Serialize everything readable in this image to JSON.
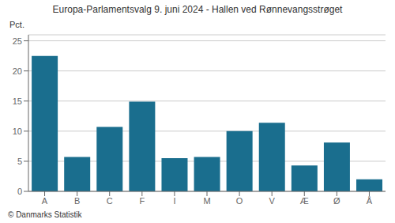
{
  "chart_data": {
    "type": "bar",
    "title": "Europa-Parlamentsvalg 9. juni 2024 - Hallen ved Rønnevangsstrøget",
    "ylabel": "Pct.",
    "footer": "© Danmarks Statistik",
    "categories": [
      "A",
      "B",
      "C",
      "F",
      "I",
      "M",
      "O",
      "V",
      "Æ",
      "Ø",
      "Å"
    ],
    "values": [
      22.5,
      5.7,
      10.7,
      14.9,
      5.5,
      5.7,
      10.0,
      11.4,
      4.3,
      8.1,
      2.0
    ],
    "color": "#1a6e8e",
    "ylim": [
      0,
      26
    ],
    "yticks": [
      0,
      5,
      10,
      15,
      20,
      25
    ],
    "grid": true
  }
}
